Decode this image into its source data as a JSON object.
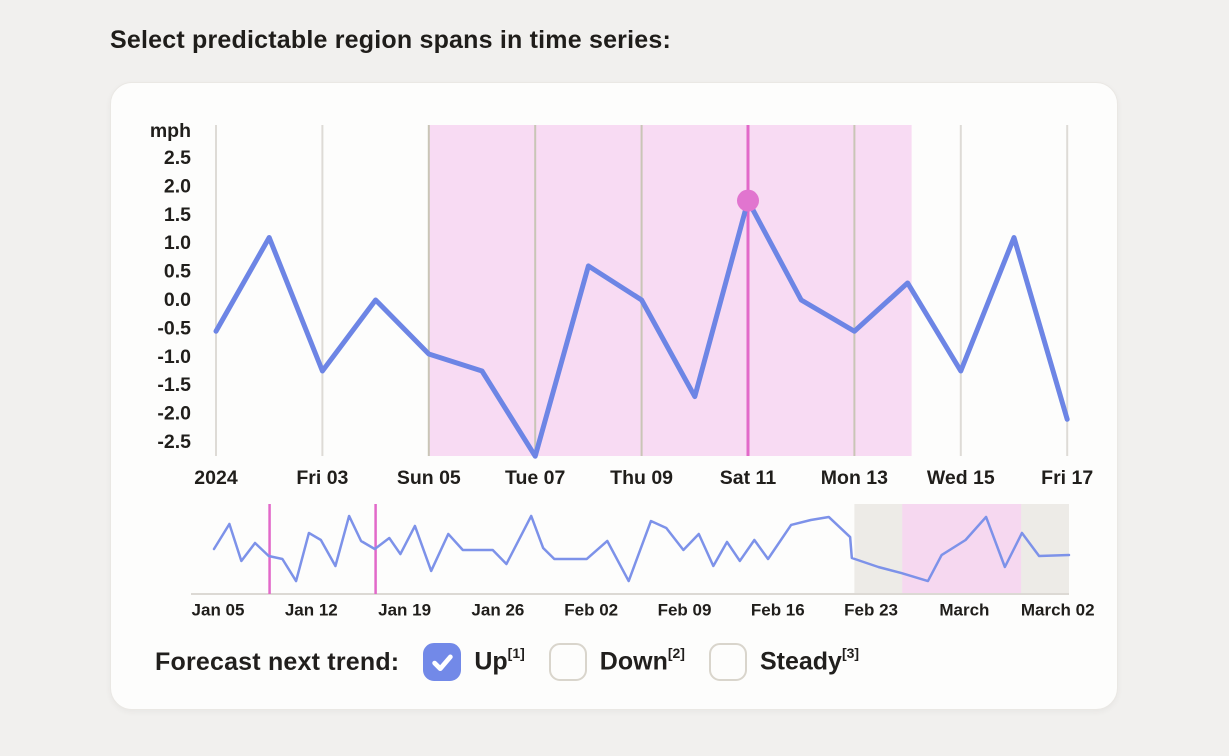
{
  "page_title": "Select predictable region spans in time series:",
  "colors": {
    "accent_blue": "#7289e8",
    "line_blue": "#6d85e5",
    "overview_blue": "#7d92e9",
    "magenta": "#e269c9",
    "marker_dot": "#e175cf",
    "region_pink": "#f8dbf3",
    "overview_region_pink": "#f6d8f0",
    "overview_gray": "#edebe7",
    "gridline": "#dedbd6",
    "gridline_in_region": "#c9c5b6",
    "axis_line": "#dcd9d4",
    "text_dark": "#201e1b"
  },
  "chart_data": {
    "main": {
      "type": "line",
      "y_axis_unit": "mph",
      "y_ticks": [
        "2.5",
        "2.0",
        "1.5",
        "1.0",
        "0.5",
        "0.0",
        "-0.5",
        "-1.0",
        "-1.5",
        "-2.0",
        "-2.5"
      ],
      "x_labels": [
        "2024",
        "Fri 03",
        "Sun 05",
        "Tue 07",
        "Thu 09",
        "Sat 11",
        "Mon 13",
        "Wed 15",
        "Fri 17"
      ],
      "points_per_label_interval": 2,
      "values": [
        -0.55,
        1.1,
        -1.25,
        0.0,
        -0.95,
        -1.25,
        -2.75,
        0.6,
        0.0,
        -1.7,
        1.75,
        0.0,
        -0.55,
        0.3,
        -1.25,
        1.1,
        -2.1
      ],
      "selected_region": {
        "start_index": 4,
        "end_index": 13,
        "start_label": "Sun 05"
      },
      "marker": {
        "index": 10,
        "value": 1.75,
        "label": "Sat 11"
      },
      "ylim": [
        -2.9,
        3.0
      ],
      "grid": "vertical-only"
    },
    "overview": {
      "type": "line",
      "x_labels": [
        "Jan 05",
        "Jan 12",
        "Jan 19",
        "Jan 26",
        "Feb 02",
        "Feb 09",
        "Feb 16",
        "Feb 23",
        "March",
        "March 02"
      ],
      "points_pct": [
        [
          0,
          50
        ],
        [
          1.8,
          22.2
        ],
        [
          3.2,
          63.3
        ],
        [
          4.8,
          43.3
        ],
        [
          6.4,
          57.8
        ],
        [
          8,
          61.1
        ],
        [
          9.6,
          85.6
        ],
        [
          11.1,
          32.2
        ],
        [
          12.5,
          40
        ],
        [
          14.2,
          68.9
        ],
        [
          15.8,
          13.3
        ],
        [
          17.2,
          41.1
        ],
        [
          18.8,
          50
        ],
        [
          20.5,
          37.8
        ],
        [
          21.8,
          55.6
        ],
        [
          23.5,
          24.4
        ],
        [
          25.4,
          74.4
        ],
        [
          27.4,
          33.3
        ],
        [
          29.1,
          51.1
        ],
        [
          32.6,
          51.1
        ],
        [
          34.2,
          66.7
        ],
        [
          37.1,
          13.3
        ],
        [
          38.5,
          48.9
        ],
        [
          39.8,
          61.1
        ],
        [
          43.6,
          61.1
        ],
        [
          46,
          41.1
        ],
        [
          48.5,
          85.6
        ],
        [
          51.1,
          18.9
        ],
        [
          52.9,
          26.7
        ],
        [
          54.9,
          51.1
        ],
        [
          56.7,
          33.3
        ],
        [
          58.4,
          68.9
        ],
        [
          60,
          42.2
        ],
        [
          61.5,
          63.3
        ],
        [
          63.2,
          40
        ],
        [
          64.8,
          61.1
        ],
        [
          67.5,
          23.3
        ],
        [
          69.8,
          17.8
        ],
        [
          71.9,
          14.4
        ],
        [
          74.4,
          36.7
        ],
        [
          74.6,
          60
        ],
        [
          77.7,
          70
        ],
        [
          80.4,
          76.7
        ],
        [
          83.5,
          85.6
        ],
        [
          85.1,
          56.7
        ],
        [
          87.9,
          40
        ],
        [
          90.3,
          14.4
        ],
        [
          92.5,
          70
        ],
        [
          94.5,
          32.2
        ],
        [
          96.5,
          57.8
        ],
        [
          100,
          56.7
        ]
      ],
      "brush_lines_x_pct": [
        6.5,
        18.9
      ],
      "dimmed_region_x_pct": [
        74.9,
        100
      ],
      "selected_region_x_pct": [
        80.5,
        94.4
      ]
    }
  },
  "forecast": {
    "label": "Forecast next trend:",
    "options": [
      {
        "label": "Up",
        "shortcut": "[1]",
        "checked": true
      },
      {
        "label": "Down",
        "shortcut": "[2]",
        "checked": false
      },
      {
        "label": "Steady",
        "shortcut": "[3]",
        "checked": false
      }
    ]
  }
}
